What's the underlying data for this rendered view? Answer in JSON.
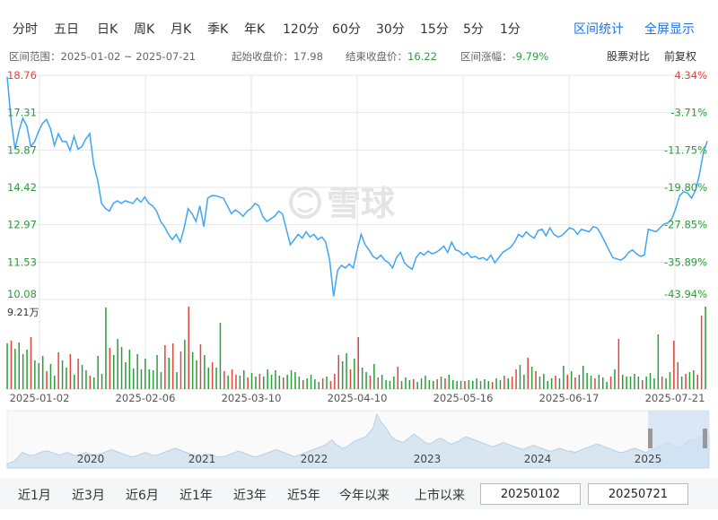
{
  "periods": [
    "分时",
    "五日",
    "日K",
    "周K",
    "月K",
    "季K",
    "年K",
    "120分",
    "60分",
    "30分",
    "15分",
    "5分",
    "1分"
  ],
  "links": {
    "interval_stats": "区间统计",
    "fullscreen": "全屏显示"
  },
  "info": {
    "range_label": "区间范围：2025-01-02 ~ 2025-07-21",
    "start_close_label": "起始收盘价：",
    "start_close": "17.98",
    "end_close_label": "结束收盘价：",
    "end_close": "16.22",
    "change_label": "区间涨幅：",
    "change": "-9.79%",
    "compare": "股票对比",
    "adjust": "前复权"
  },
  "chart_data": [
    {
      "type": "line",
      "y_left_ticks": [
        "18.76",
        "17.31",
        "15.87",
        "14.42",
        "12.97",
        "11.53",
        "10.08"
      ],
      "y_right_ticks": [
        "4.34%",
        "-3.71%",
        "-11.75%",
        "-19.80%",
        "-27.85%",
        "-35.89%",
        "-43.94%"
      ],
      "ylim": [
        10.08,
        18.76
      ],
      "x_tick_labels": [
        "2025-01-02",
        "2025-02-06",
        "2025-03-10",
        "2025-04-10",
        "2025-05-16",
        "2025-06-17",
        "2025-07-21"
      ],
      "grid": true,
      "series": [
        {
          "values": [
            18.7,
            17.0,
            15.9,
            16.6,
            17.1,
            16.8,
            16.0,
            16.2,
            16.6,
            16.9,
            17.05,
            16.7,
            16.05,
            16.5,
            16.2,
            16.2,
            15.85,
            16.4,
            15.9,
            16.0,
            16.3,
            16.5,
            15.3,
            14.7,
            13.8,
            13.6,
            13.5,
            13.8,
            13.9,
            13.8,
            13.9,
            13.85,
            13.8,
            14.0,
            13.85,
            14.05,
            13.8,
            13.7,
            13.5,
            13.1,
            12.9,
            12.6,
            12.4,
            12.6,
            12.3,
            12.85,
            13.6,
            13.4,
            13.1,
            13.7,
            12.9,
            14.0,
            14.1,
            14.1,
            14.05,
            14.0,
            13.7,
            13.4,
            13.55,
            13.45,
            13.3,
            13.5,
            13.6,
            13.8,
            13.7,
            13.3,
            13.1,
            13.2,
            13.3,
            13.5,
            13.4,
            12.8,
            12.2,
            12.4,
            12.6,
            12.45,
            12.7,
            12.5,
            12.6,
            12.4,
            12.5,
            12.3,
            11.6,
            10.2,
            11.2,
            11.4,
            11.3,
            11.45,
            11.3,
            12.0,
            12.6,
            12.2,
            12.0,
            11.75,
            11.65,
            11.8,
            11.6,
            11.5,
            11.3,
            11.7,
            11.9,
            11.5,
            11.35,
            11.25,
            11.7,
            11.9,
            11.8,
            11.95,
            11.85,
            11.9,
            12.0,
            12.15,
            11.9,
            12.3,
            12.0,
            11.95,
            11.8,
            11.9,
            11.7,
            11.75,
            11.65,
            11.7,
            11.6,
            11.8,
            11.5,
            11.7,
            11.9,
            12.0,
            12.1,
            12.3,
            12.6,
            12.5,
            12.7,
            12.55,
            12.45,
            12.75,
            12.8,
            12.55,
            12.85,
            12.6,
            12.5,
            12.55,
            12.7,
            12.85,
            12.8,
            12.6,
            12.8,
            12.75,
            12.7,
            12.9,
            12.85,
            12.6,
            12.3,
            12.0,
            11.7,
            11.65,
            11.6,
            11.7,
            11.9,
            12.0,
            11.85,
            11.75,
            11.8,
            12.8,
            12.75,
            12.7,
            12.85,
            13.0,
            13.05,
            13.2,
            13.6,
            14.1,
            14.25,
            14.2,
            14.0,
            14.3,
            14.9,
            15.75,
            16.22
          ]
        }
      ]
    },
    {
      "type": "bar",
      "title": "9.21万",
      "values": [
        5.1,
        5.4,
        4.5,
        5.2,
        3.9,
        4.4,
        5.8,
        3.2,
        2.9,
        3.7,
        2.0,
        2.8,
        1.5,
        4.1,
        3.2,
        2.4,
        3.9,
        1.6,
        3.4,
        2.7,
        2.1,
        1.5,
        1.3,
        3.7,
        1.7,
        9.1,
        4.6,
        3.8,
        5.6,
        4.7,
        3.0,
        4.4,
        2.3,
        3.9,
        2.2,
        3.4,
        2.2,
        2.1,
        3.8,
        1.9,
        4.9,
        3.5,
        5.1,
        1.9,
        4.2,
        5.5,
        9.2,
        4.1,
        3.2,
        5.0,
        3.8,
        2.4,
        3.0,
        2.4,
        7.4,
        2.0,
        1.5,
        2.2,
        1.6,
        1.5,
        2.1,
        1.3,
        1.8,
        1.4,
        1.7,
        1.4,
        2.2,
        1.6,
        2.1,
        1.5,
        1.3,
        1.6,
        2.1,
        1.9,
        1.4,
        1.0,
        1.2,
        1.6,
        1.1,
        0.8,
        1.2,
        1.4,
        0.9,
        1.7,
        3.8,
        3.1,
        4.0,
        2.2,
        3.4,
        5.8,
        2.4,
        1.9,
        1.5,
        2.8,
        1.3,
        1.6,
        1.0,
        0.9,
        1.4,
        2.5,
        0.9,
        1.3,
        1.0,
        1.1,
        0.8,
        1.2,
        1.5,
        1.0,
        0.9,
        1.1,
        1.4,
        1.2,
        1.6,
        1.0,
        0.9,
        0.9,
        0.9,
        1.0,
        0.9,
        1.2,
        0.9,
        1.1,
        0.9,
        0.8,
        1.2,
        1.0,
        1.5,
        1.2,
        1.4,
        2.2,
        2.7,
        1.6,
        3.5,
        2.5,
        2.0,
        1.4,
        1.7,
        0.9,
        1.2,
        1.5,
        1.2,
        2.6,
        1.6,
        2.0,
        1.3,
        1.6,
        2.6,
        1.8,
        1.5,
        1.2,
        1.6,
        1.3,
        0.8,
        1.4,
        2.2,
        5.6,
        1.6,
        1.4,
        1.4,
        1.7,
        1.4,
        1.0,
        1.4,
        1.8,
        1.2,
        6.1,
        1.4,
        1.2,
        1.9,
        5.4,
        3.0,
        1.4,
        1.7,
        1.9,
        2.1,
        1.6,
        8.2,
        9.2
      ],
      "up": [
        false,
        true,
        false,
        false,
        false,
        false,
        true,
        false,
        false,
        false,
        true,
        false,
        false,
        true,
        false,
        false,
        true,
        false,
        true,
        false,
        false,
        true,
        false,
        false,
        false,
        false,
        true,
        false,
        false,
        false,
        false,
        false,
        false,
        false,
        false,
        false,
        false,
        false,
        false,
        false,
        true,
        false,
        true,
        false,
        true,
        false,
        true,
        false,
        false,
        true,
        false,
        false,
        true,
        false,
        false,
        true,
        false,
        true,
        true,
        false,
        false,
        true,
        false,
        false,
        true,
        false,
        false,
        false,
        false,
        false,
        true,
        false,
        false,
        false,
        false,
        true,
        false,
        false,
        false,
        false,
        true,
        false,
        true,
        true,
        true,
        false,
        false,
        true,
        false,
        true,
        false,
        false,
        true,
        false,
        true,
        false,
        false,
        false,
        false,
        true,
        false,
        false,
        false,
        true,
        false,
        false,
        false,
        false,
        false,
        true,
        false,
        true,
        false,
        false,
        false,
        false,
        true,
        false,
        false,
        false,
        false,
        false,
        false,
        true,
        false,
        false,
        true,
        false,
        true,
        true,
        false,
        false,
        true,
        false,
        true,
        false,
        false,
        false,
        false,
        true,
        false,
        false,
        true,
        false,
        true,
        false,
        false,
        false,
        false,
        true,
        false,
        false,
        false,
        true,
        false,
        true,
        false,
        false,
        false,
        false,
        false,
        true,
        false,
        false,
        false,
        false,
        true,
        false,
        false,
        true,
        true,
        false,
        true,
        false,
        false,
        true,
        true
      ]
    },
    {
      "type": "area",
      "x_tick_labels": [
        "2020",
        "2021",
        "2022",
        "2023",
        "2024",
        "2025"
      ],
      "values": [
        3,
        4,
        5,
        8,
        11,
        10,
        9,
        9,
        10,
        11,
        12,
        12,
        11,
        10,
        9,
        10,
        11,
        10,
        9,
        9,
        10,
        11,
        10,
        9,
        9,
        10,
        11,
        12,
        13,
        12,
        11,
        10,
        9,
        8,
        8,
        9,
        10,
        11,
        10,
        9,
        9,
        10,
        11,
        12,
        13,
        14,
        13,
        12,
        11,
        10,
        9,
        8,
        8,
        9,
        10,
        9,
        8,
        8,
        8,
        9,
        10,
        11,
        12,
        11,
        10,
        9,
        8,
        8,
        9,
        10,
        11,
        12,
        13,
        12,
        11,
        10,
        9,
        8,
        9,
        10,
        11,
        12,
        13,
        14,
        15,
        16,
        18,
        20,
        17,
        15,
        14,
        15,
        17,
        19,
        20,
        21,
        22,
        25,
        28,
        38,
        33,
        30,
        26,
        22,
        20,
        19,
        18,
        20,
        22,
        24,
        22,
        20,
        18,
        17,
        18,
        20,
        21,
        20,
        18,
        17,
        18,
        19,
        21,
        22,
        21,
        20,
        19,
        18,
        17,
        16,
        15,
        16,
        17,
        18,
        17,
        16,
        15,
        14,
        13,
        14,
        15,
        16,
        15,
        14,
        13,
        12,
        12,
        13,
        14,
        13,
        12,
        12,
        11,
        12,
        13,
        14,
        15,
        16,
        17,
        16,
        15,
        14,
        13,
        12,
        11,
        11,
        12,
        13,
        14,
        13,
        12,
        11,
        12,
        13,
        14,
        16,
        17,
        18,
        16,
        15,
        14,
        16,
        18,
        20,
        19,
        21,
        22,
        24,
        23
      ]
    }
  ],
  "bottom": {
    "ranges": [
      "近1月",
      "近3月",
      "近6月",
      "近1年",
      "近3年",
      "近5年",
      "今年以来",
      "上市以来"
    ],
    "start_date": "20250102",
    "end_date": "20250721"
  },
  "colors": {
    "line": "#3ea6f5",
    "up": "#e0463c",
    "down": "#2a9d3a",
    "grid": "#e6e6e6",
    "area": "#d8e6f2",
    "selection": "#cfe0f2"
  },
  "watermark": "雪球"
}
